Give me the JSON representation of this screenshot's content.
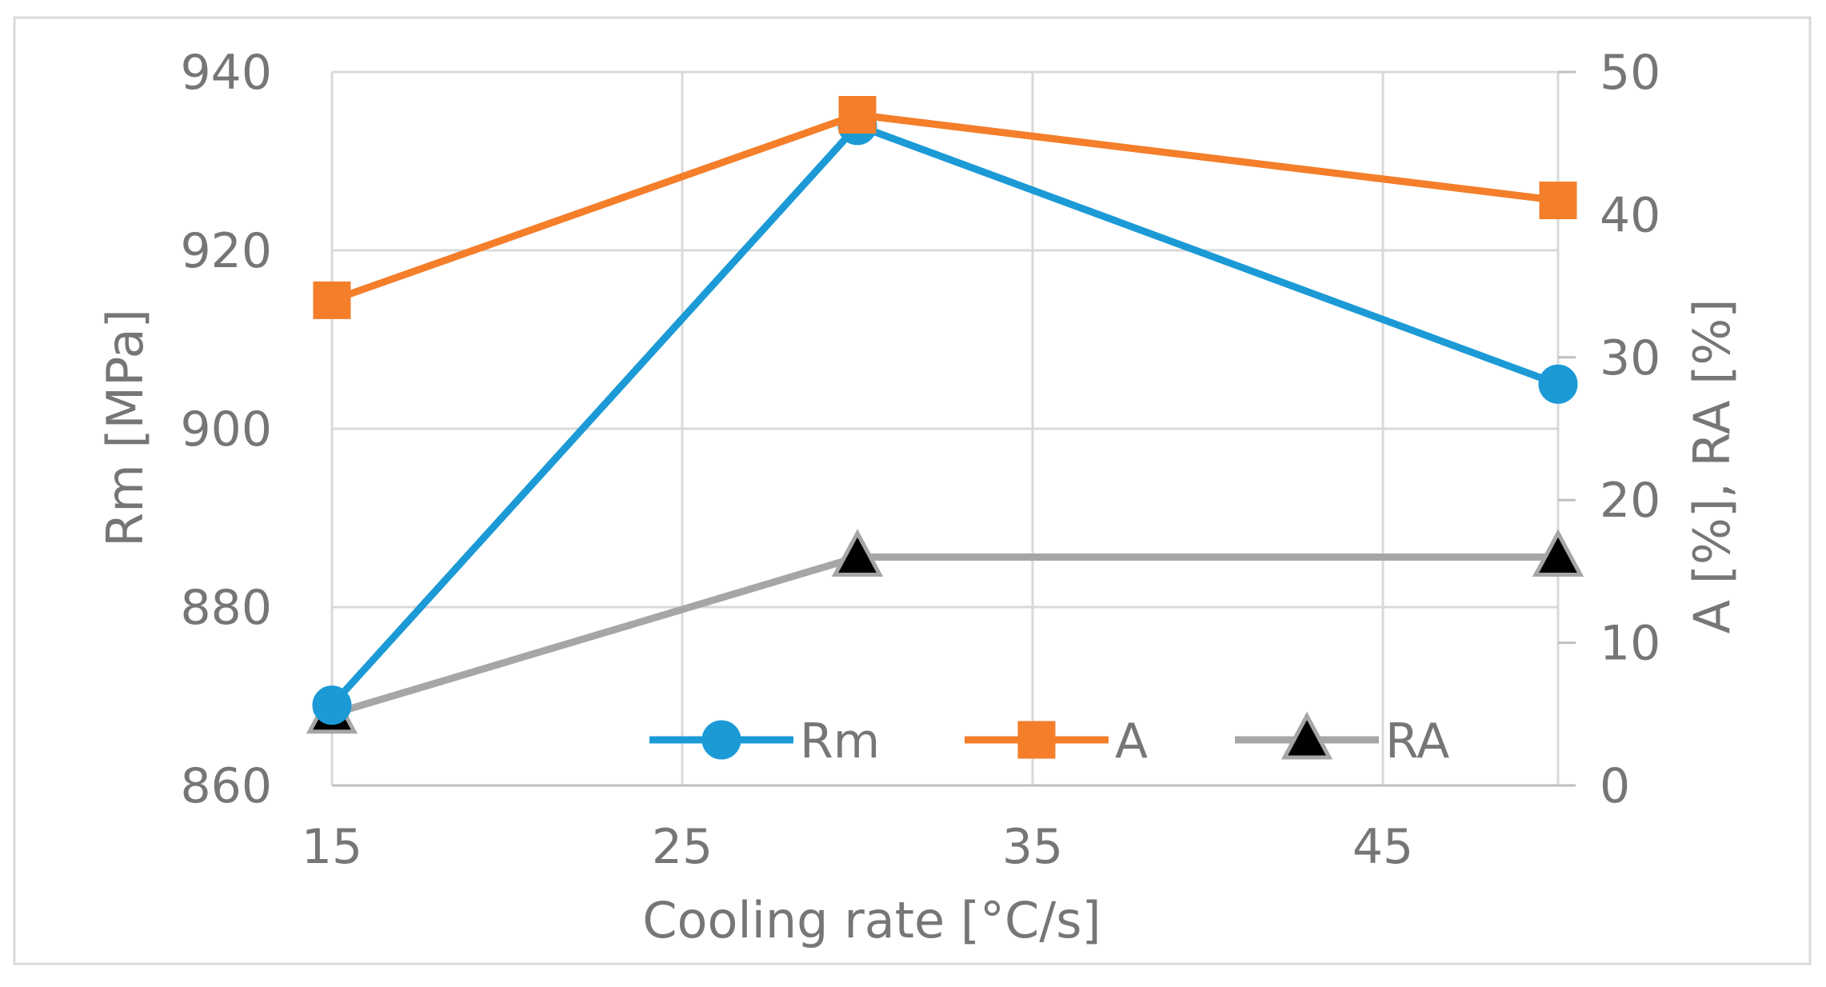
{
  "chart_data": {
    "type": "line",
    "title": "",
    "xlabel": "Cooling rate [°C/s]",
    "ylabel": "Rm [MPa]",
    "y2label": "A [%], RA [%]",
    "x_ticks": [
      15,
      25,
      35,
      45
    ],
    "xlim": [
      15,
      50
    ],
    "ylim": [
      860,
      940
    ],
    "y_ticks": [
      860,
      880,
      900,
      920,
      940
    ],
    "y2lim": [
      0,
      50
    ],
    "y2_ticks": [
      0,
      10,
      20,
      30,
      40,
      50
    ],
    "grid": true,
    "legend_position": "bottom-right inside",
    "series": [
      {
        "name": "Rm",
        "axis": "left",
        "marker": "circle",
        "color": "#1b9ad6",
        "x": [
          15,
          30,
          50
        ],
        "values": [
          869,
          934,
          905
        ]
      },
      {
        "name": "A",
        "axis": "right",
        "marker": "square",
        "color": "#f47e2a",
        "x": [
          15,
          30,
          50
        ],
        "values": [
          34,
          47,
          41
        ]
      },
      {
        "name": "RA",
        "axis": "right",
        "marker": "triangle",
        "color": "#a6a6a6",
        "x": [
          15,
          30,
          50
        ],
        "values": [
          5,
          16,
          16
        ]
      }
    ]
  }
}
